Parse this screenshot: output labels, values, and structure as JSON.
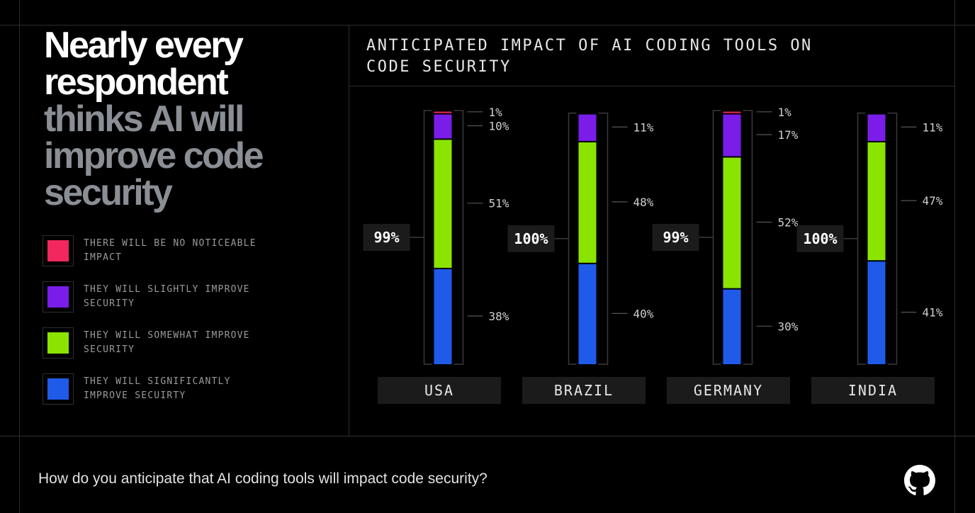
{
  "headline": {
    "lines_white": [
      "Nearly every",
      "respondent"
    ],
    "lines_gray": [
      "thinks AI will",
      "improve code",
      "security"
    ]
  },
  "legend": [
    {
      "label": "THERE WILL BE NO NOTICEABLE IMPACT",
      "color": "#f2275d"
    },
    {
      "label": "THEY WILL SLIGHTLY IMPROVE SECURITY",
      "color": "#7b1de8"
    },
    {
      "label": "THEY WILL SOMEWHAT IMPROVE SECURITY",
      "color": "#8be400"
    },
    {
      "label": "THEY WILL SIGNIFICANTLY IMPROVE SECUIRTY",
      "color": "#1f5be8"
    }
  ],
  "chart_data": {
    "type": "bar",
    "stacked": true,
    "orientation": "vertical",
    "title": "ANTICIPATED IMPACT OF AI CODING TOOLS ON CODE SECURITY",
    "categories": [
      "USA",
      "BRAZIL",
      "GERMANY",
      "INDIA"
    ],
    "totals": [
      "99%",
      "100%",
      "99%",
      "100%"
    ],
    "series": [
      {
        "name": "THEY WILL SIGNIFICANTLY IMPROVE SECUIRTY",
        "color": "#1f5be8",
        "values": [
          38,
          40,
          30,
          41
        ],
        "labels": [
          "38%",
          "40%",
          "30%",
          "41%"
        ]
      },
      {
        "name": "THEY WILL SOMEWHAT IMPROVE SECURITY",
        "color": "#8be400",
        "values": [
          51,
          48,
          52,
          47
        ],
        "labels": [
          "51%",
          "48%",
          "52%",
          "47%"
        ]
      },
      {
        "name": "THEY WILL SLIGHTLY IMPROVE SECURITY",
        "color": "#7b1de8",
        "values": [
          10,
          11,
          17,
          11
        ],
        "labels": [
          "10%",
          "11%",
          "17%",
          "11%"
        ]
      },
      {
        "name": "THERE WILL BE NO NOTICEABLE IMPACT",
        "color": "#f2275d",
        "values": [
          1,
          0,
          1,
          0
        ],
        "labels": [
          "1%",
          "",
          "1%",
          ""
        ]
      }
    ]
  },
  "footer": {
    "question": "How do you anticipate that AI coding tools will impact code security?",
    "logo_icon": "github-icon"
  }
}
